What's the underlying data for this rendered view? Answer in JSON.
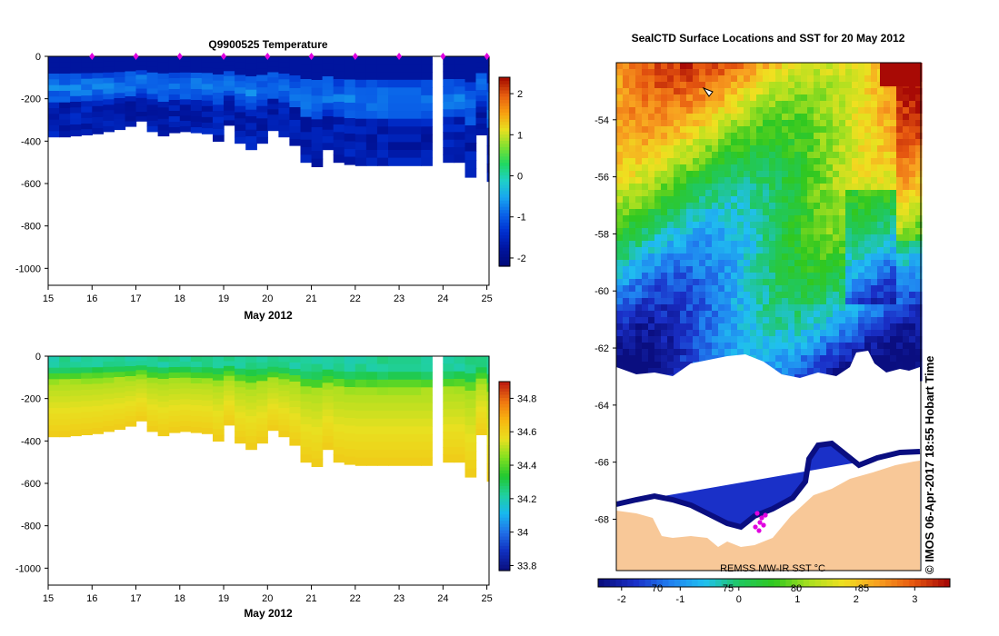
{
  "colors": {
    "temperature_scale": [
      "#000a7a",
      "#0015a0",
      "#0030d0",
      "#0a62e8",
      "#18a6f0",
      "#1fd0c8",
      "#20d860",
      "#80e030",
      "#e8e020",
      "#f8a010",
      "#e86010",
      "#a81000"
    ],
    "salinity_scale": [
      "#0a1080",
      "#1030c0",
      "#2070e8",
      "#18b8f0",
      "#20d0a0",
      "#20c830",
      "#80e020",
      "#e8e020",
      "#f8b810",
      "#f07810",
      "#c02010"
    ],
    "sst_scale": [
      "#0a0e80",
      "#1a30c8",
      "#2080f0",
      "#20c0f0",
      "#20c860",
      "#30c820",
      "#a8e020",
      "#f0e020",
      "#f8a020",
      "#e85a10",
      "#a80a05"
    ],
    "land": "#f8c898",
    "marker": "#e000e0"
  },
  "chart_data": [
    {
      "type": "heatmap",
      "title": "Q9900525  Temperature",
      "xlabel": "May 2012",
      "ylabel": "",
      "x_ticks": [
        "15",
        "16",
        "17",
        "18",
        "19",
        "20",
        "21",
        "22",
        "23",
        "24",
        "25"
      ],
      "xlim": [
        15,
        25.05
      ],
      "y_ticks": [
        "0",
        "-200",
        "-400",
        "-600",
        "-800",
        "-1000"
      ],
      "ylim": [
        -1080,
        0
      ],
      "colorbar_ticks": [
        "2",
        "1",
        "0",
        "-1",
        "-2"
      ],
      "colorbar_range": [
        -2.2,
        2.4
      ],
      "profile_markers_days": [
        16,
        17,
        18,
        19,
        20,
        21,
        22,
        23,
        24,
        25
      ],
      "profiles": [
        {
          "day": 15.0,
          "depth": 380
        },
        {
          "day": 15.25,
          "depth": 380
        },
        {
          "day": 15.5,
          "depth": 375
        },
        {
          "day": 15.75,
          "depth": 370
        },
        {
          "day": 16.0,
          "depth": 365
        },
        {
          "day": 16.25,
          "depth": 355
        },
        {
          "day": 16.5,
          "depth": 345
        },
        {
          "day": 16.75,
          "depth": 330
        },
        {
          "day": 17.0,
          "depth": 305
        },
        {
          "day": 17.25,
          "depth": 355
        },
        {
          "day": 17.5,
          "depth": 375
        },
        {
          "day": 17.75,
          "depth": 360
        },
        {
          "day": 18.0,
          "depth": 355
        },
        {
          "day": 18.25,
          "depth": 360
        },
        {
          "day": 18.5,
          "depth": 365
        },
        {
          "day": 18.75,
          "depth": 400
        },
        {
          "day": 19.0,
          "depth": 325
        },
        {
          "day": 19.25,
          "depth": 410
        },
        {
          "day": 19.5,
          "depth": 440
        },
        {
          "day": 19.75,
          "depth": 410
        },
        {
          "day": 20.0,
          "depth": 350
        },
        {
          "day": 20.25,
          "depth": 380
        },
        {
          "day": 20.5,
          "depth": 420
        },
        {
          "day": 20.75,
          "depth": 500
        },
        {
          "day": 21.0,
          "depth": 520
        },
        {
          "day": 21.25,
          "depth": 440
        },
        {
          "day": 21.5,
          "depth": 500
        },
        {
          "day": 21.75,
          "depth": 510
        },
        {
          "day": 22.0,
          "depth": 515
        },
        {
          "day": 22.25,
          "depth": 515
        },
        {
          "day": 22.5,
          "depth": 515
        },
        {
          "day": 22.75,
          "depth": 515
        },
        {
          "day": 23.5,
          "depth": 515
        },
        {
          "day": 23.75,
          "depth": 0
        },
        {
          "day": 24.0,
          "depth": 500
        },
        {
          "day": 24.25,
          "depth": 500
        },
        {
          "day": 24.5,
          "depth": 570
        },
        {
          "day": 24.75,
          "depth": 370
        },
        {
          "day": 25.0,
          "depth": 590
        }
      ],
      "value_profile": {
        "surface": -1.8,
        "subsurface_max": -0.6,
        "bottom": -1.9
      }
    },
    {
      "type": "heatmap",
      "title": "",
      "xlabel": "May 2012",
      "ylabel": "",
      "x_ticks": [
        "15",
        "16",
        "17",
        "18",
        "19",
        "20",
        "21",
        "22",
        "23",
        "24",
        "25"
      ],
      "xlim": [
        15,
        25.05
      ],
      "y_ticks": [
        "0",
        "-200",
        "-400",
        "-600",
        "-800",
        "-1000"
      ],
      "ylim": [
        -1080,
        0
      ],
      "colorbar_ticks": [
        "34.8",
        "34.6",
        "34.4",
        "34.2",
        "34",
        "33.8"
      ],
      "colorbar_range": [
        33.77,
        34.9
      ],
      "value_profile": {
        "surface": 34.2,
        "mid": 34.5,
        "bottom": 34.62
      }
    },
    {
      "type": "heatmap",
      "title": "SealCTD Surface Locations and SST for 20 May 2012",
      "xlabel": "",
      "ylabel": "",
      "y_ticks": [
        "-54",
        "-56",
        "-58",
        "-60",
        "-62",
        "-64",
        "-66",
        "-68"
      ],
      "ylim": [
        -69.8,
        -52.0
      ],
      "colorbar_ticks": [
        "-2",
        "-1",
        "0",
        "1",
        "2",
        "3"
      ],
      "colorbar_range": [
        -2.4,
        3.6
      ],
      "secondary_ticks": [
        "70",
        "75",
        "80",
        "85"
      ],
      "annotation": "REMSS MW-IR SST °C",
      "credit": "© IMOS 06-Apr-2017 18:55 Hobart Time",
      "land": "Antarctica coastline in the south of the domain",
      "ice_edge_lat": -63.1
    }
  ]
}
